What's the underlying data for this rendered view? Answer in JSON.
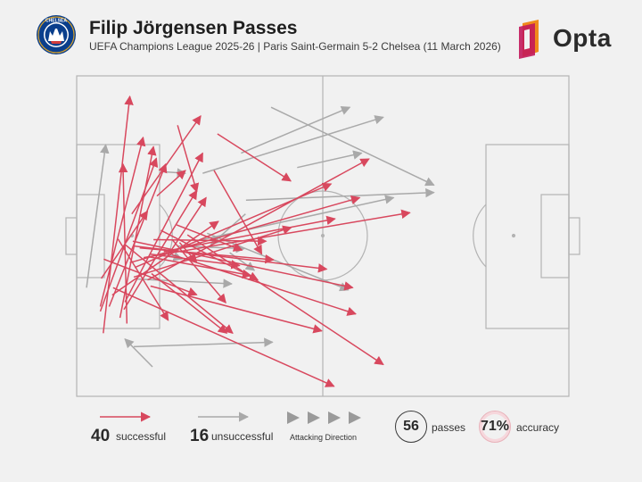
{
  "header": {
    "title": "Filip Jörgensen Passes",
    "subtitle": "UEFA Champions League 2025-26 | Paris Saint-Germain 5-2 Chelsea (11 March 2026)",
    "crest_text": "CHELSEA",
    "brand": "Opta"
  },
  "colors": {
    "successful": "#d8485e",
    "unsuccessful": "#a9a9a9",
    "pitch_lines": "#b3b3b3",
    "background": "#f1f1f1",
    "opta_orange": "#f08a1c",
    "opta_magenta": "#c2185b"
  },
  "passes": {
    "successful": [
      {
        "from": [
          4.8,
          72
        ],
        "to": [
          13.5,
          19.2
        ]
      },
      {
        "from": [
          5.4,
          80.3
        ],
        "to": [
          10.8,
          6.4
        ]
      },
      {
        "from": [
          10.2,
          77.3
        ],
        "to": [
          9.4,
          27.5
        ]
      },
      {
        "from": [
          8.8,
          75.5
        ],
        "to": [
          15.6,
          22.1
        ]
      },
      {
        "from": [
          6.6,
          72
        ],
        "to": [
          18.1,
          27.5
        ]
      },
      {
        "from": [
          4.8,
          73.5
        ],
        "to": [
          16.2,
          25.7
        ]
      },
      {
        "from": [
          9.6,
          72.9
        ],
        "to": [
          24.4,
          35.8
        ]
      },
      {
        "from": [
          9.8,
          70.6
        ],
        "to": [
          25.6,
          24.1
        ]
      },
      {
        "from": [
          7.2,
          68.4
        ],
        "to": [
          28.8,
          45.4
        ]
      },
      {
        "from": [
          7.4,
          66.1
        ],
        "to": [
          52.3,
          96.9
        ]
      },
      {
        "from": [
          15,
          65.6
        ],
        "to": [
          49.8,
          79.6
        ]
      },
      {
        "from": [
          14.4,
          63.7
        ],
        "to": [
          59.4,
          25.9
        ]
      },
      {
        "from": [
          5,
          63.2
        ],
        "to": [
          14.4,
          42.2
        ]
      },
      {
        "from": [
          11.6,
          62.8
        ],
        "to": [
          43.6,
          47.3
        ]
      },
      {
        "from": [
          15.2,
          61.7
        ],
        "to": [
          30.5,
          80.3
        ]
      },
      {
        "from": [
          11.8,
          59.8
        ],
        "to": [
          51.7,
          33.7
        ]
      },
      {
        "from": [
          10.8,
          58.3
        ],
        "to": [
          57.5,
          38
        ]
      },
      {
        "from": [
          5.5,
          57.2
        ],
        "to": [
          24.4,
          68.3
        ]
      },
      {
        "from": [
          13.6,
          56.7
        ],
        "to": [
          67.7,
          42.7
        ]
      },
      {
        "from": [
          14.8,
          56.5
        ],
        "to": [
          35.4,
          62.3
        ]
      },
      {
        "from": [
          18.4,
          56.3
        ],
        "to": [
          26.3,
          38
        ]
      },
      {
        "from": [
          19.4,
          55.8
        ],
        "to": [
          56.7,
          74.3
        ]
      },
      {
        "from": [
          14.8,
          55.6
        ],
        "to": [
          33.1,
          59.2
        ]
      },
      {
        "from": [
          17.7,
          54.8
        ],
        "to": [
          52.5,
          44.6
        ]
      },
      {
        "from": [
          12.8,
          53.7
        ],
        "to": [
          40,
          57.4
        ]
      },
      {
        "from": [
          11.6,
          53.1
        ],
        "to": [
          50.8,
          60.3
        ]
      },
      {
        "from": [
          9.8,
          52.6
        ],
        "to": [
          31.7,
          80.3
        ]
      },
      {
        "from": [
          20.9,
          52
        ],
        "to": [
          24.4,
          58.3
        ]
      },
      {
        "from": [
          11.4,
          51.6
        ],
        "to": [
          56.1,
          66.1
        ]
      },
      {
        "from": [
          15.6,
          51.1
        ],
        "to": [
          38.5,
          51.6
        ]
      },
      {
        "from": [
          19.4,
          51.1
        ],
        "to": [
          30.3,
          70.8
        ]
      },
      {
        "from": [
          8.4,
          50.9
        ],
        "to": [
          18.6,
          76.3
        ]
      },
      {
        "from": [
          22.5,
          49.6
        ],
        "to": [
          62.3,
          90.1
        ]
      },
      {
        "from": [
          17.1,
          48.2
        ],
        "to": [
          36.8,
          63.7
        ]
      },
      {
        "from": [
          20.3,
          46.5
        ],
        "to": [
          33.6,
          54.4
        ]
      },
      {
        "from": [
          11.2,
          43.1
        ],
        "to": [
          25.2,
          12.5
        ]
      },
      {
        "from": [
          16.3,
          37.5
        ],
        "to": [
          22.1,
          29.5
        ]
      },
      {
        "from": [
          27.9,
          29.5
        ],
        "to": [
          37.6,
          55.6
        ]
      },
      {
        "from": [
          28.6,
          18.1
        ],
        "to": [
          43.5,
          32.8
        ]
      },
      {
        "from": [
          20.5,
          15.4
        ],
        "to": [
          24.4,
          36.2
        ]
      }
    ],
    "unsuccessful": [
      {
        "from": [
          15.4,
          90.8
        ],
        "to": [
          9.8,
          82.1
        ]
      },
      {
        "from": [
          11.6,
          84.5
        ],
        "to": [
          39.8,
          83.1
        ]
      },
      {
        "from": [
          12.3,
          63.4
        ],
        "to": [
          31.5,
          64.9
        ]
      },
      {
        "from": [
          18.4,
          55.6
        ],
        "to": [
          21.4,
          57.2
        ]
      },
      {
        "from": [
          31.1,
          55.2
        ],
        "to": [
          36.1,
          60.7
        ]
      },
      {
        "from": [
          20.5,
          53.1
        ],
        "to": [
          34.1,
          53.9
        ]
      },
      {
        "from": [
          24.6,
          51.4
        ],
        "to": [
          64.4,
          38
        ]
      },
      {
        "from": [
          26.5,
          49.1
        ],
        "to": [
          55.2,
          66.8
        ]
      },
      {
        "from": [
          34.3,
          43.1
        ],
        "to": [
          27.3,
          52.6
        ]
      },
      {
        "from": [
          34.4,
          38.8
        ],
        "to": [
          72.6,
          36.4
        ]
      },
      {
        "from": [
          25.6,
          30.4
        ],
        "to": [
          62.3,
          12.9
        ]
      },
      {
        "from": [
          44.8,
          28.6
        ],
        "to": [
          57.9,
          24.1
        ]
      },
      {
        "from": [
          17.5,
          29.9
        ],
        "to": [
          22.1,
          30.4
        ]
      },
      {
        "from": [
          33.4,
          24.1
        ],
        "to": [
          55.5,
          9.8
        ]
      },
      {
        "from": [
          39.5,
          9.8
        ],
        "to": [
          72.6,
          34.1
        ]
      },
      {
        "from": [
          2,
          66.1
        ],
        "to": [
          5.9,
          21.5
        ]
      }
    ]
  },
  "legend": {
    "successful_count": "40",
    "successful_label": "successful",
    "unsuccessful_count": "16",
    "unsuccessful_label": "unsuccessful",
    "direction_label": "Attacking Direction",
    "passes_count": "56",
    "passes_label": "passes",
    "accuracy_value": "71%",
    "accuracy_label": "accuracy"
  }
}
